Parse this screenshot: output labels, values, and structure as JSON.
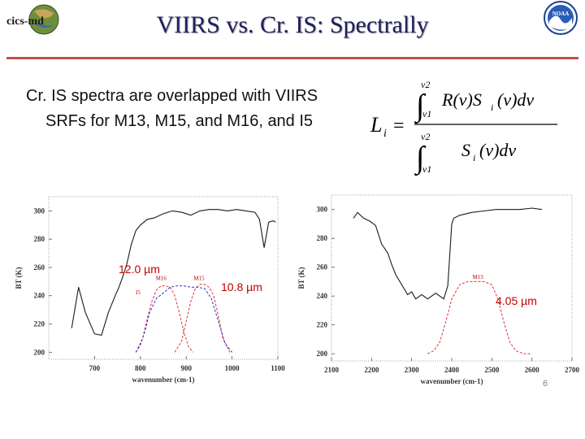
{
  "slide": {
    "title": "VIIRS vs. Cr. IS: Spectrally",
    "bullet": "Cr. IS spectra are overlapped with VIIRS SRFs for M13, M15, and M16, and I5",
    "page_number": "6",
    "logo_text": "cics-md",
    "noaa_text": "NOAA"
  },
  "formula": {
    "lhs": "L",
    "lhs_sub": "i",
    "upper_limit": "ν2",
    "lower_limit": "ν1",
    "numerator": "R(ν)S",
    "numerator_sub": "i",
    "numerator_tail": "(ν)dν",
    "denominator": "S",
    "denominator_sub": "i",
    "denominator_tail": "(ν)dν"
  },
  "annotations": {
    "left_a": "12.0 µm",
    "left_b": "10.8 µm",
    "right_a": "4.05 µm"
  },
  "colors": {
    "title": "#1f1f5f",
    "rule": "#c0504d",
    "spectrum": "#1a1a1a",
    "srf_red": "#e03030",
    "srf_blue": "#3030d0",
    "annotation": "#c00000"
  },
  "chart_data": [
    {
      "type": "line",
      "title": "",
      "xlabel": "wavenumber (cm-1)",
      "ylabel": "BT (K)",
      "xlim": [
        600,
        1100
      ],
      "ylim": [
        195,
        310
      ],
      "x_ticks": [
        700,
        800,
        900,
        1000,
        1100
      ],
      "y_ticks": [
        200,
        220,
        240,
        260,
        280,
        300
      ],
      "band_labels": [
        "M16",
        "M15",
        "I5"
      ],
      "series": [
        {
          "name": "CrIS spectrum",
          "x": [
            650,
            665,
            680,
            700,
            715,
            730,
            745,
            752,
            760,
            770,
            780,
            790,
            800,
            815,
            830,
            850,
            870,
            890,
            910,
            930,
            950,
            970,
            990,
            1010,
            1030,
            1050,
            1060,
            1070,
            1080,
            1090,
            1095
          ],
          "y": [
            217,
            246,
            228,
            213,
            212,
            228,
            240,
            245,
            252,
            262,
            276,
            286,
            290,
            294,
            295,
            298,
            300,
            299,
            297,
            300,
            301,
            301,
            300,
            301,
            300,
            299,
            294,
            274,
            292,
            293,
            292
          ]
        },
        {
          "name": "M16 SRF",
          "x": [
            790,
            805,
            815,
            825,
            835,
            845,
            855,
            865,
            875,
            885,
            895,
            905,
            915
          ],
          "y": [
            200,
            210,
            224,
            236,
            244,
            247,
            247,
            246,
            240,
            228,
            214,
            204,
            200
          ]
        },
        {
          "name": "M15 SRF",
          "x": [
            875,
            890,
            900,
            910,
            920,
            930,
            940,
            950,
            960,
            970,
            980,
            995
          ],
          "y": [
            200,
            208,
            222,
            236,
            245,
            248,
            248,
            246,
            240,
            226,
            210,
            200
          ]
        },
        {
          "name": "I5 SRF",
          "x": [
            790,
            800,
            810,
            820,
            835,
            850,
            865,
            880,
            895,
            910,
            925,
            940,
            955,
            970,
            985,
            1000
          ],
          "y": [
            200,
            205,
            215,
            228,
            238,
            242,
            246,
            247,
            247,
            246,
            246,
            245,
            238,
            222,
            206,
            200
          ]
        }
      ]
    },
    {
      "type": "line",
      "title": "",
      "xlabel": "wavenumber (cm-1)",
      "ylabel": "BT (K)",
      "xlim": [
        2100,
        2700
      ],
      "ylim": [
        195,
        310
      ],
      "x_ticks": [
        2100,
        2200,
        2300,
        2400,
        2500,
        2600,
        2700
      ],
      "y_ticks": [
        200,
        220,
        240,
        260,
        280,
        300
      ],
      "band_labels": [
        "M13"
      ],
      "series": [
        {
          "name": "CrIS spectrum",
          "x": [
            2155,
            2165,
            2180,
            2195,
            2210,
            2225,
            2240,
            2250,
            2260,
            2275,
            2290,
            2300,
            2310,
            2325,
            2340,
            2360,
            2380,
            2390,
            2395,
            2400,
            2405,
            2420,
            2450,
            2480,
            2510,
            2540,
            2570,
            2600,
            2625
          ],
          "y": [
            294,
            298,
            294,
            292,
            289,
            276,
            270,
            262,
            255,
            248,
            241,
            243,
            238,
            241,
            238,
            242,
            238,
            247,
            268,
            290,
            294,
            296,
            298,
            299,
            300,
            300,
            300,
            301,
            300
          ]
        },
        {
          "name": "M13 SRF",
          "x": [
            2340,
            2355,
            2370,
            2385,
            2400,
            2420,
            2440,
            2460,
            2480,
            2500,
            2515,
            2530,
            2545,
            2560,
            2580,
            2600
          ],
          "y": [
            200,
            202,
            208,
            222,
            238,
            248,
            250,
            250,
            250,
            248,
            238,
            222,
            208,
            202,
            200,
            200
          ]
        }
      ]
    }
  ]
}
